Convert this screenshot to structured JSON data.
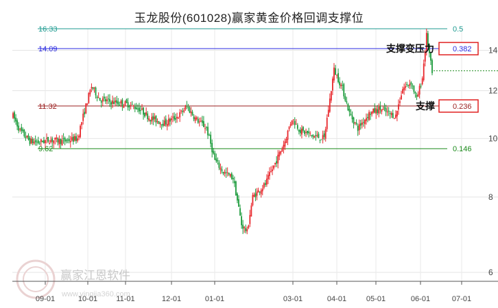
{
  "chart_data": {
    "type": "candlestick",
    "title": "玉龙股份(601028)赢家黄金价格回调支撑位",
    "y_axis": {
      "min": 5.8,
      "max": 15.2,
      "ticks": [
        6,
        8,
        10,
        12,
        14
      ]
    },
    "x_axis": {
      "labels": [
        "09-01",
        "10-01",
        "11-01",
        "12-01",
        "01-01",
        "03-01",
        "04-01",
        "05-01",
        "06-01",
        "07-01"
      ]
    },
    "levels": [
      {
        "price": 16.33,
        "price_label": "16.33",
        "ratio": "0.5",
        "color": "#1b9a8f",
        "boxed": false
      },
      {
        "price": 14.09,
        "price_label": "14.09",
        "ratio": "0.382",
        "color": "#2a2ae0",
        "boxed": true
      },
      {
        "price": 11.32,
        "price_label": "11.32",
        "ratio": "0.236",
        "color": "#9a1e1e",
        "boxed": true
      },
      {
        "price": 9.62,
        "price_label": "9.62",
        "ratio": "0.146",
        "color": "#1a8a1a",
        "boxed": false
      }
    ],
    "annotations": [
      {
        "text": "支撑变压力",
        "price": 14.09
      },
      {
        "text": "支撑",
        "price": 11.32
      }
    ],
    "last_price": 12.95,
    "up_color": "#e8262b",
    "down_color": "#1a9a3a",
    "path": [
      [
        0,
        10.9
      ],
      [
        5,
        10.3
      ],
      [
        12,
        9.9
      ],
      [
        18,
        9.85
      ],
      [
        26,
        9.95
      ],
      [
        36,
        9.9
      ],
      [
        46,
        10.0
      ],
      [
        56,
        12.2
      ],
      [
        62,
        11.6
      ],
      [
        70,
        11.5
      ],
      [
        82,
        11.4
      ],
      [
        90,
        11.2
      ],
      [
        98,
        10.8
      ],
      [
        108,
        10.6
      ],
      [
        118,
        10.9
      ],
      [
        124,
        11.3
      ],
      [
        130,
        10.8
      ],
      [
        138,
        10.4
      ],
      [
        144,
        9.2
      ],
      [
        150,
        8.8
      ],
      [
        157,
        8.6
      ],
      [
        163,
        7.2
      ],
      [
        167,
        7.0
      ],
      [
        171,
        8.0
      ],
      [
        180,
        8.4
      ],
      [
        188,
        9.2
      ],
      [
        194,
        9.9
      ],
      [
        199,
        10.8
      ],
      [
        205,
        10.3
      ],
      [
        214,
        10.1
      ],
      [
        222,
        10.0
      ],
      [
        226,
        11.6
      ],
      [
        229,
        13.0
      ],
      [
        235,
        12.1
      ],
      [
        240,
        11.0
      ],
      [
        246,
        10.4
      ],
      [
        254,
        11.0
      ],
      [
        262,
        11.2
      ],
      [
        268,
        11.0
      ],
      [
        273,
        10.9
      ],
      [
        278,
        12.1
      ],
      [
        284,
        12.4
      ],
      [
        288,
        11.6
      ],
      [
        292,
        12.6
      ],
      [
        295,
        14.8
      ],
      [
        299,
        12.8
      ]
    ],
    "dates": [
      "09-01",
      "10-01",
      "11-01",
      "12-01",
      "01-01",
      "03-01",
      "04-01",
      "05-01",
      "06-01",
      "07-01"
    ]
  },
  "watermark": {
    "main": "赢家江恩软件",
    "sub": "www.yingjia360.com"
  }
}
